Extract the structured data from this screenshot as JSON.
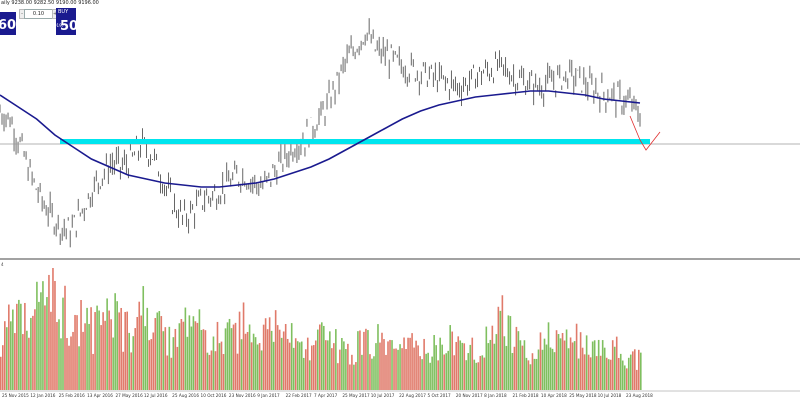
{
  "header": {
    "symbol_info": "aily  9238.00 9282.50 9190.00 9196.00"
  },
  "trade_panel": {
    "lot_value": "0.10",
    "sell_price": "50",
    "sell_price_fraction": "60",
    "buy_label": "BUY",
    "buy_price_small": "9197",
    "buy_price": "50",
    "spin_minus": "-",
    "spin_plus": "+"
  },
  "volume_panel": {
    "label": "4"
  },
  "x_axis": {
    "tick_labels": [
      "25 Nov 2015",
      "12 Jan 2016",
      "25 Feb 2016",
      "13 Apr 2016",
      "27 May 2016",
      "12 Jul 2016",
      "25 Aug 2016",
      "10 Oct 2016",
      "23 Nov 2016",
      "9 Jan 2017",
      "22 Feb 2017",
      "7 Apr 2017",
      "25 May 2017",
      "10 Jul 2017",
      "22 Aug 2017",
      "5 Oct 2017",
      "20 Nov 2017",
      "8 Jan 2018",
      "21 Feb 2018",
      "10 Apr 2018",
      "25 May 2018",
      "10 Jul 2018",
      "23 Aug 2018"
    ]
  },
  "colors": {
    "price_bars": "#555555",
    "moving_average": "#1a1a8f",
    "support_line": "#00e5ee",
    "bid_line": "#9a9a9a",
    "volume_up": "#7fbf5f",
    "volume_down": "#e07a6a",
    "projection": "#e03030",
    "panel_button": "#1a1a8f"
  },
  "chart_data": {
    "type": "line",
    "series": [
      {
        "values": [
          72,
          68,
          55,
          40,
          28,
          20,
          14,
          12,
          22,
          32,
          40,
          46,
          44,
          48,
          55,
          50,
          38,
          26,
          18,
          22,
          28,
          30,
          34,
          38,
          40,
          36,
          34,
          42,
          48,
          55,
          58,
          66,
          72,
          84,
          96,
          104,
          112,
          102,
          100,
          96,
          94,
          92,
          90,
          88,
          86,
          84,
          86,
          90,
          92,
          94,
          92,
          88,
          86,
          84,
          86,
          88,
          90,
          88,
          84,
          82,
          80,
          78,
          76,
          70
        ]
      },
      {
        "values": [
          80,
          74,
          68,
          60,
          54,
          48,
          44,
          40,
          38,
          36,
          35,
          34,
          34,
          35,
          36,
          38,
          41,
          44,
          48,
          53,
          58,
          63,
          68,
          72,
          75,
          77,
          79,
          80,
          81,
          82,
          82,
          81,
          80,
          78,
          77,
          76
        ]
      }
    ],
    "volume": {
      "values": [
        40,
        55,
        48,
        70,
        60,
        80,
        65,
        50,
        58,
        45,
        52,
        66,
        48,
        40,
        60,
        50,
        42,
        38,
        46,
        55,
        40,
        36,
        44,
        38,
        50,
        34,
        40,
        46,
        52,
        38,
        30,
        36,
        42,
        34,
        28,
        32,
        38,
        40,
        30,
        26,
        34,
        30,
        28,
        36,
        40,
        32,
        30,
        34,
        38,
        60,
        44,
        34,
        30,
        36,
        40,
        32,
        46,
        34,
        30,
        28,
        32,
        30,
        26,
        24
      ]
    }
  }
}
